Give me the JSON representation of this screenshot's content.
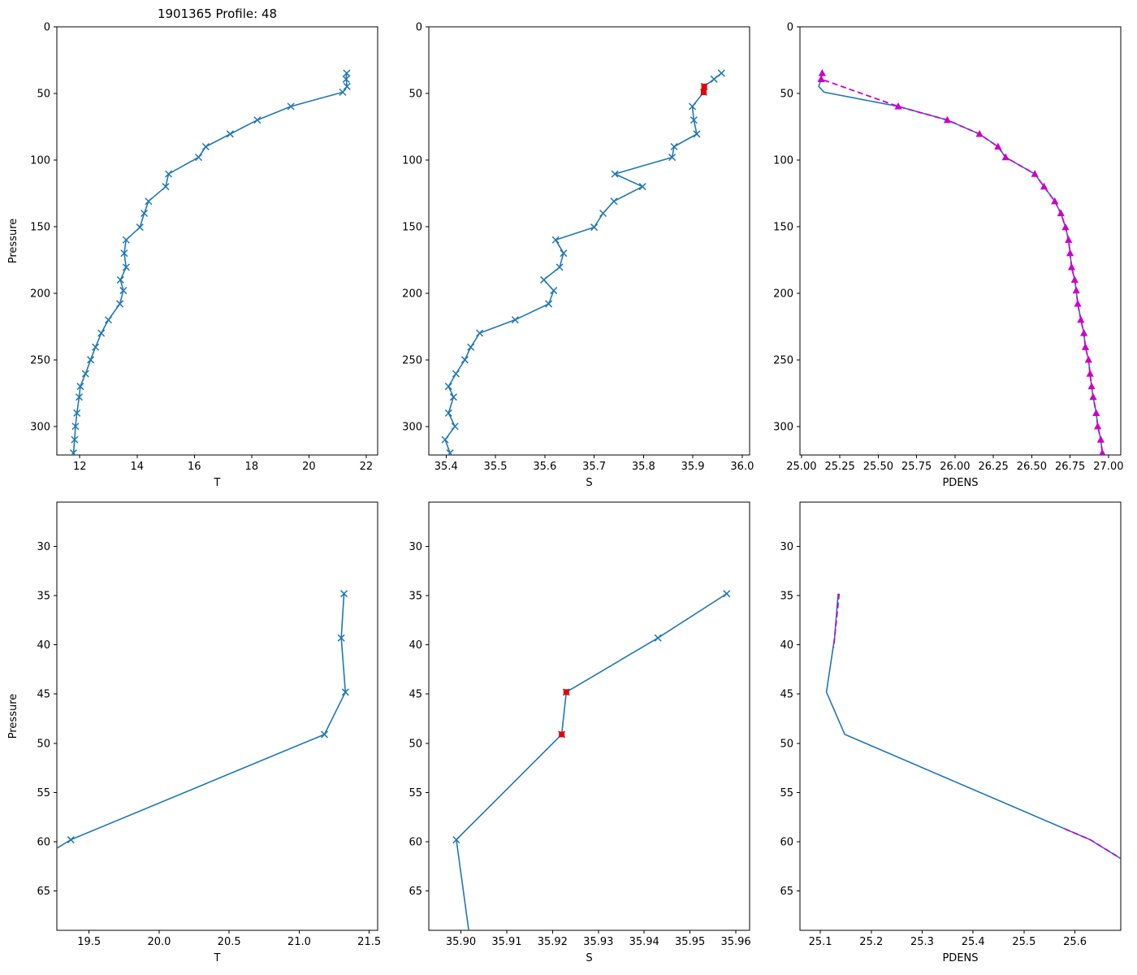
{
  "title": "1901365 Profile: 48",
  "colors": {
    "profile_line": "#1f77b4",
    "flagged_point": "#e60000",
    "overlay_line": "#cc00cc",
    "axis": "#000000",
    "background": "#ffffff"
  },
  "chart_data": [
    {
      "id": "temperature-full",
      "type": "line",
      "row": 0,
      "col": 0,
      "xlabel": "T",
      "ylabel": "Pressure",
      "xlim": [
        11.2,
        22.4
      ],
      "ylim": [
        0,
        321.5
      ],
      "invert_y": true,
      "grid": false,
      "xticks": {
        "values": [
          12,
          14,
          16,
          18,
          20,
          22
        ],
        "labels": [
          "12",
          "14",
          "16",
          "18",
          "20",
          "22"
        ]
      },
      "yticks": {
        "values": [
          0,
          50,
          100,
          150,
          200,
          250,
          300
        ],
        "labels": [
          "0",
          "50",
          "100",
          "150",
          "200",
          "250",
          "300"
        ]
      },
      "series": [
        {
          "name": "temperature",
          "color": "#1f77b4",
          "marker": "x",
          "dash": false,
          "line": true,
          "x": [
            21.32,
            21.3,
            21.33,
            21.18,
            19.37,
            18.2,
            17.25,
            16.4,
            16.15,
            15.1,
            15.0,
            14.4,
            14.25,
            14.1,
            13.62,
            13.55,
            13.62,
            13.42,
            13.52,
            13.4,
            13.0,
            12.75,
            12.55,
            12.38,
            12.2,
            12.02,
            11.98,
            11.9,
            11.85,
            11.82,
            11.78
          ],
          "y": [
            34.8,
            39.3,
            44.8,
            49.1,
            59.8,
            70,
            80.5,
            90,
            98,
            110.5,
            120,
            131,
            140,
            150.5,
            160,
            170,
            180.5,
            190,
            198,
            208,
            220,
            230,
            240.5,
            250,
            260.5,
            270,
            278,
            290,
            300,
            310,
            320
          ]
        }
      ]
    },
    {
      "id": "salinity-full",
      "type": "line",
      "row": 0,
      "col": 1,
      "xlabel": "S",
      "ylabel": "",
      "xlim": [
        35.365,
        36.015
      ],
      "ylim": [
        0,
        321.5
      ],
      "invert_y": true,
      "grid": false,
      "xticks": {
        "values": [
          35.4,
          35.5,
          35.6,
          35.7,
          35.8,
          35.9,
          36.0
        ],
        "labels": [
          "35.4",
          "35.5",
          "35.6",
          "35.7",
          "35.8",
          "35.9",
          "36.0"
        ]
      },
      "yticks": {
        "values": [
          0,
          50,
          100,
          150,
          200,
          250,
          300
        ],
        "labels": [
          "0",
          "50",
          "100",
          "150",
          "200",
          "250",
          "300"
        ]
      },
      "series": [
        {
          "name": "salinity",
          "color": "#1f77b4",
          "marker": "x",
          "dash": false,
          "line": true,
          "x": [
            35.958,
            35.943,
            35.923,
            35.922,
            35.899,
            35.902,
            35.908,
            35.862,
            35.858,
            35.742,
            35.798,
            35.74,
            35.718,
            35.7,
            35.622,
            35.638,
            35.63,
            35.598,
            35.618,
            35.608,
            35.54,
            35.468,
            35.45,
            35.438,
            35.42,
            35.405,
            35.415,
            35.405,
            35.418,
            35.398,
            35.408
          ],
          "y": [
            34.8,
            39.3,
            44.8,
            49.1,
            59.8,
            70,
            80.5,
            90,
            98,
            110.5,
            120,
            131,
            140,
            150.5,
            160,
            170,
            180.5,
            190,
            198,
            208,
            220,
            230,
            240.5,
            250,
            260.5,
            270,
            278,
            290,
            300,
            310,
            320
          ]
        },
        {
          "name": "salinity-flagged",
          "color": "#e60000",
          "marker": "square",
          "dash": false,
          "line": false,
          "x": [
            35.923,
            35.922
          ],
          "y": [
            44.8,
            49.1
          ]
        }
      ]
    },
    {
      "id": "pdens-full",
      "type": "line",
      "row": 0,
      "col": 2,
      "xlabel": "PDENS",
      "ylabel": "",
      "xlim": [
        24.99,
        27.08
      ],
      "ylim": [
        0,
        321.5
      ],
      "invert_y": true,
      "grid": false,
      "xticks": {
        "values": [
          25.0,
          25.25,
          25.5,
          25.75,
          26.0,
          26.25,
          26.5,
          26.75,
          27.0
        ],
        "labels": [
          "25.00",
          "25.25",
          "25.50",
          "25.75",
          "26.00",
          "26.25",
          "26.50",
          "26.75",
          "27.00"
        ]
      },
      "yticks": {
        "values": [
          0,
          50,
          100,
          150,
          200,
          250,
          300
        ],
        "labels": [
          "0",
          "50",
          "100",
          "150",
          "200",
          "250",
          "300"
        ]
      },
      "series": [
        {
          "name": "pdens",
          "color": "#1f77b4",
          "marker": null,
          "dash": false,
          "line": true,
          "x": [
            25.135,
            25.128,
            25.112,
            25.148,
            25.63,
            25.95,
            26.16,
            26.28,
            26.33,
            26.52,
            26.58,
            26.65,
            26.69,
            26.72,
            26.74,
            26.75,
            26.76,
            26.78,
            26.79,
            26.8,
            26.82,
            26.84,
            26.85,
            26.87,
            26.88,
            26.89,
            26.9,
            26.92,
            26.93,
            26.95,
            26.96
          ],
          "y": [
            34.8,
            39.3,
            44.8,
            49.1,
            59.8,
            70,
            80.5,
            90,
            98,
            110.5,
            120,
            131,
            140,
            150.5,
            160,
            170,
            180.5,
            190,
            198,
            208,
            220,
            230,
            240.5,
            250,
            260.5,
            270,
            278,
            290,
            300,
            310,
            320
          ]
        },
        {
          "name": "pdens-overlay",
          "color": "#cc00cc",
          "marker": "triangle",
          "dash": true,
          "line": true,
          "x": [
            25.135,
            25.128,
            25.63,
            25.95,
            26.16,
            26.28,
            26.33,
            26.52,
            26.58,
            26.65,
            26.69,
            26.72,
            26.74,
            26.75,
            26.76,
            26.78,
            26.79,
            26.8,
            26.82,
            26.84,
            26.85,
            26.87,
            26.88,
            26.89,
            26.9,
            26.92,
            26.93,
            26.95,
            26.96
          ],
          "y": [
            34.8,
            39.3,
            59.8,
            70,
            80.5,
            90,
            98,
            110.5,
            120,
            131,
            140,
            150.5,
            160,
            170,
            180.5,
            190,
            198,
            208,
            220,
            230,
            240.5,
            250,
            260.5,
            270,
            278,
            290,
            300,
            310,
            320
          ]
        }
      ]
    },
    {
      "id": "temperature-zoom",
      "type": "line",
      "row": 1,
      "col": 0,
      "xlabel": "T",
      "ylabel": "Pressure",
      "xlim": [
        19.27,
        21.56
      ],
      "ylim": [
        25.5,
        69.0
      ],
      "invert_y": true,
      "grid": false,
      "xticks": {
        "values": [
          19.5,
          20.0,
          20.5,
          21.0,
          21.5
        ],
        "labels": [
          "19.5",
          "20.0",
          "20.5",
          "21.0",
          "21.5"
        ]
      },
      "yticks": {
        "values": [
          30,
          35,
          40,
          45,
          50,
          55,
          60,
          65
        ],
        "labels": [
          "30",
          "35",
          "40",
          "45",
          "50",
          "55",
          "60",
          "65"
        ]
      },
      "series": [
        {
          "name": "temperature",
          "color": "#1f77b4",
          "marker": "x",
          "dash": false,
          "line": true,
          "x": [
            21.32,
            21.3,
            21.33,
            21.18,
            19.37,
            18.2
          ],
          "y": [
            34.8,
            39.3,
            44.8,
            49.1,
            59.8,
            70
          ]
        }
      ]
    },
    {
      "id": "salinity-zoom",
      "type": "line",
      "row": 1,
      "col": 1,
      "xlabel": "S",
      "ylabel": "",
      "xlim": [
        35.893,
        35.963
      ],
      "ylim": [
        25.5,
        69.0
      ],
      "invert_y": true,
      "grid": false,
      "xticks": {
        "values": [
          35.9,
          35.91,
          35.92,
          35.93,
          35.94,
          35.95,
          35.96
        ],
        "labels": [
          "35.90",
          "35.91",
          "35.92",
          "35.93",
          "35.94",
          "35.95",
          "35.96"
        ]
      },
      "yticks": {
        "values": [
          30,
          35,
          40,
          45,
          50,
          55,
          60,
          65
        ],
        "labels": [
          "30",
          "35",
          "40",
          "45",
          "50",
          "55",
          "60",
          "65"
        ]
      },
      "series": [
        {
          "name": "salinity",
          "color": "#1f77b4",
          "marker": "x",
          "dash": false,
          "line": true,
          "x": [
            35.958,
            35.943,
            35.923,
            35.922,
            35.899,
            35.902
          ],
          "y": [
            34.8,
            39.3,
            44.8,
            49.1,
            59.8,
            70
          ]
        },
        {
          "name": "salinity-flagged",
          "color": "#e60000",
          "marker": "square",
          "dash": false,
          "line": false,
          "x": [
            35.923,
            35.922
          ],
          "y": [
            44.8,
            49.1
          ]
        }
      ]
    },
    {
      "id": "pdens-zoom",
      "type": "line",
      "row": 1,
      "col": 2,
      "xlabel": "PDENS",
      "ylabel": "",
      "xlim": [
        25.06,
        25.69
      ],
      "ylim": [
        25.5,
        69.0
      ],
      "invert_y": true,
      "grid": false,
      "xticks": {
        "values": [
          25.1,
          25.2,
          25.3,
          25.4,
          25.5,
          25.6
        ],
        "labels": [
          "25.1",
          "25.2",
          "25.3",
          "25.4",
          "25.5",
          "25.6"
        ]
      },
      "yticks": {
        "values": [
          30,
          35,
          40,
          45,
          50,
          55,
          60,
          65
        ],
        "labels": [
          "30",
          "35",
          "40",
          "45",
          "50",
          "55",
          "60",
          "65"
        ]
      },
      "series": [
        {
          "name": "pdens",
          "color": "#1f77b4",
          "marker": null,
          "dash": false,
          "line": true,
          "x": [
            25.135,
            25.128,
            25.112,
            25.148,
            25.63,
            25.95
          ],
          "y": [
            34.8,
            39.3,
            44.8,
            49.1,
            59.8,
            70
          ]
        },
        {
          "name": "pdens-overlay",
          "color": "#cc00cc",
          "marker": null,
          "dash": true,
          "line": true,
          "x": [
            25.137,
            25.126,
            null,
            25.58,
            25.63,
            25.69
          ],
          "y": [
            34.8,
            40.3,
            null,
            58.7,
            59.8,
            61.7
          ]
        }
      ]
    }
  ]
}
